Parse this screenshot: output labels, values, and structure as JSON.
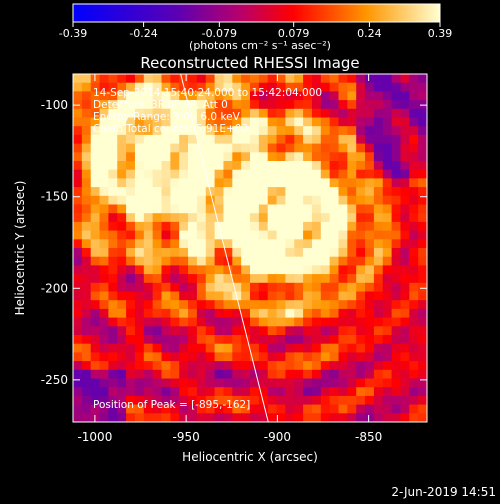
{
  "chart_data": {
    "type": "heatmap",
    "title": "Reconstructed RHESSI Image",
    "colorbar": {
      "ticks": [
        "-0.39",
        "-0.24",
        "-0.079",
        "0.079",
        "0.24",
        "0.39"
      ],
      "tick_values": [
        -0.39,
        -0.24,
        -0.079,
        0.079,
        0.24,
        0.39
      ],
      "range": [
        -0.39,
        0.39
      ],
      "units_label": "(photons cm⁻² s⁻¹ asec⁻²)"
    },
    "xlabel": "Heliocentric X (arcsec)",
    "ylabel": "Heliocentric Y (arcsec)",
    "xlim": [
      -1012,
      -818
    ],
    "ylim": [
      -273,
      -83
    ],
    "xticks": [
      -1000,
      -950,
      -900,
      -850
    ],
    "xtick_labels": [
      "-1000",
      "-950",
      "-900",
      "-850"
    ],
    "yticks": [
      -100,
      -150,
      -200,
      -250
    ],
    "ytick_labels": [
      "-100",
      "-150",
      "-200",
      "-250"
    ],
    "annotations": {
      "time": "14-Sep-2014 15:40:24.000 to 15:42:04.000",
      "detectors": "Detectors: 3F 6F 9F, Att 0",
      "energy": "Energy Range: 3.0 - 6.0 keV",
      "clean": "Clean     Total counts: 5.91E+03",
      "peak": "Position of Peak = [-895,-162]"
    },
    "peak": [
      -895,
      -162
    ],
    "secondary_peak": [
      -970,
      -125
    ],
    "limb_line": [
      [
        -953,
        -83
      ],
      [
        -905,
        -273
      ]
    ]
  },
  "footer": {
    "date": "2-Jun-2019 14:51"
  },
  "colors": {
    "background": "#000000",
    "foreground": "#ffffff"
  }
}
